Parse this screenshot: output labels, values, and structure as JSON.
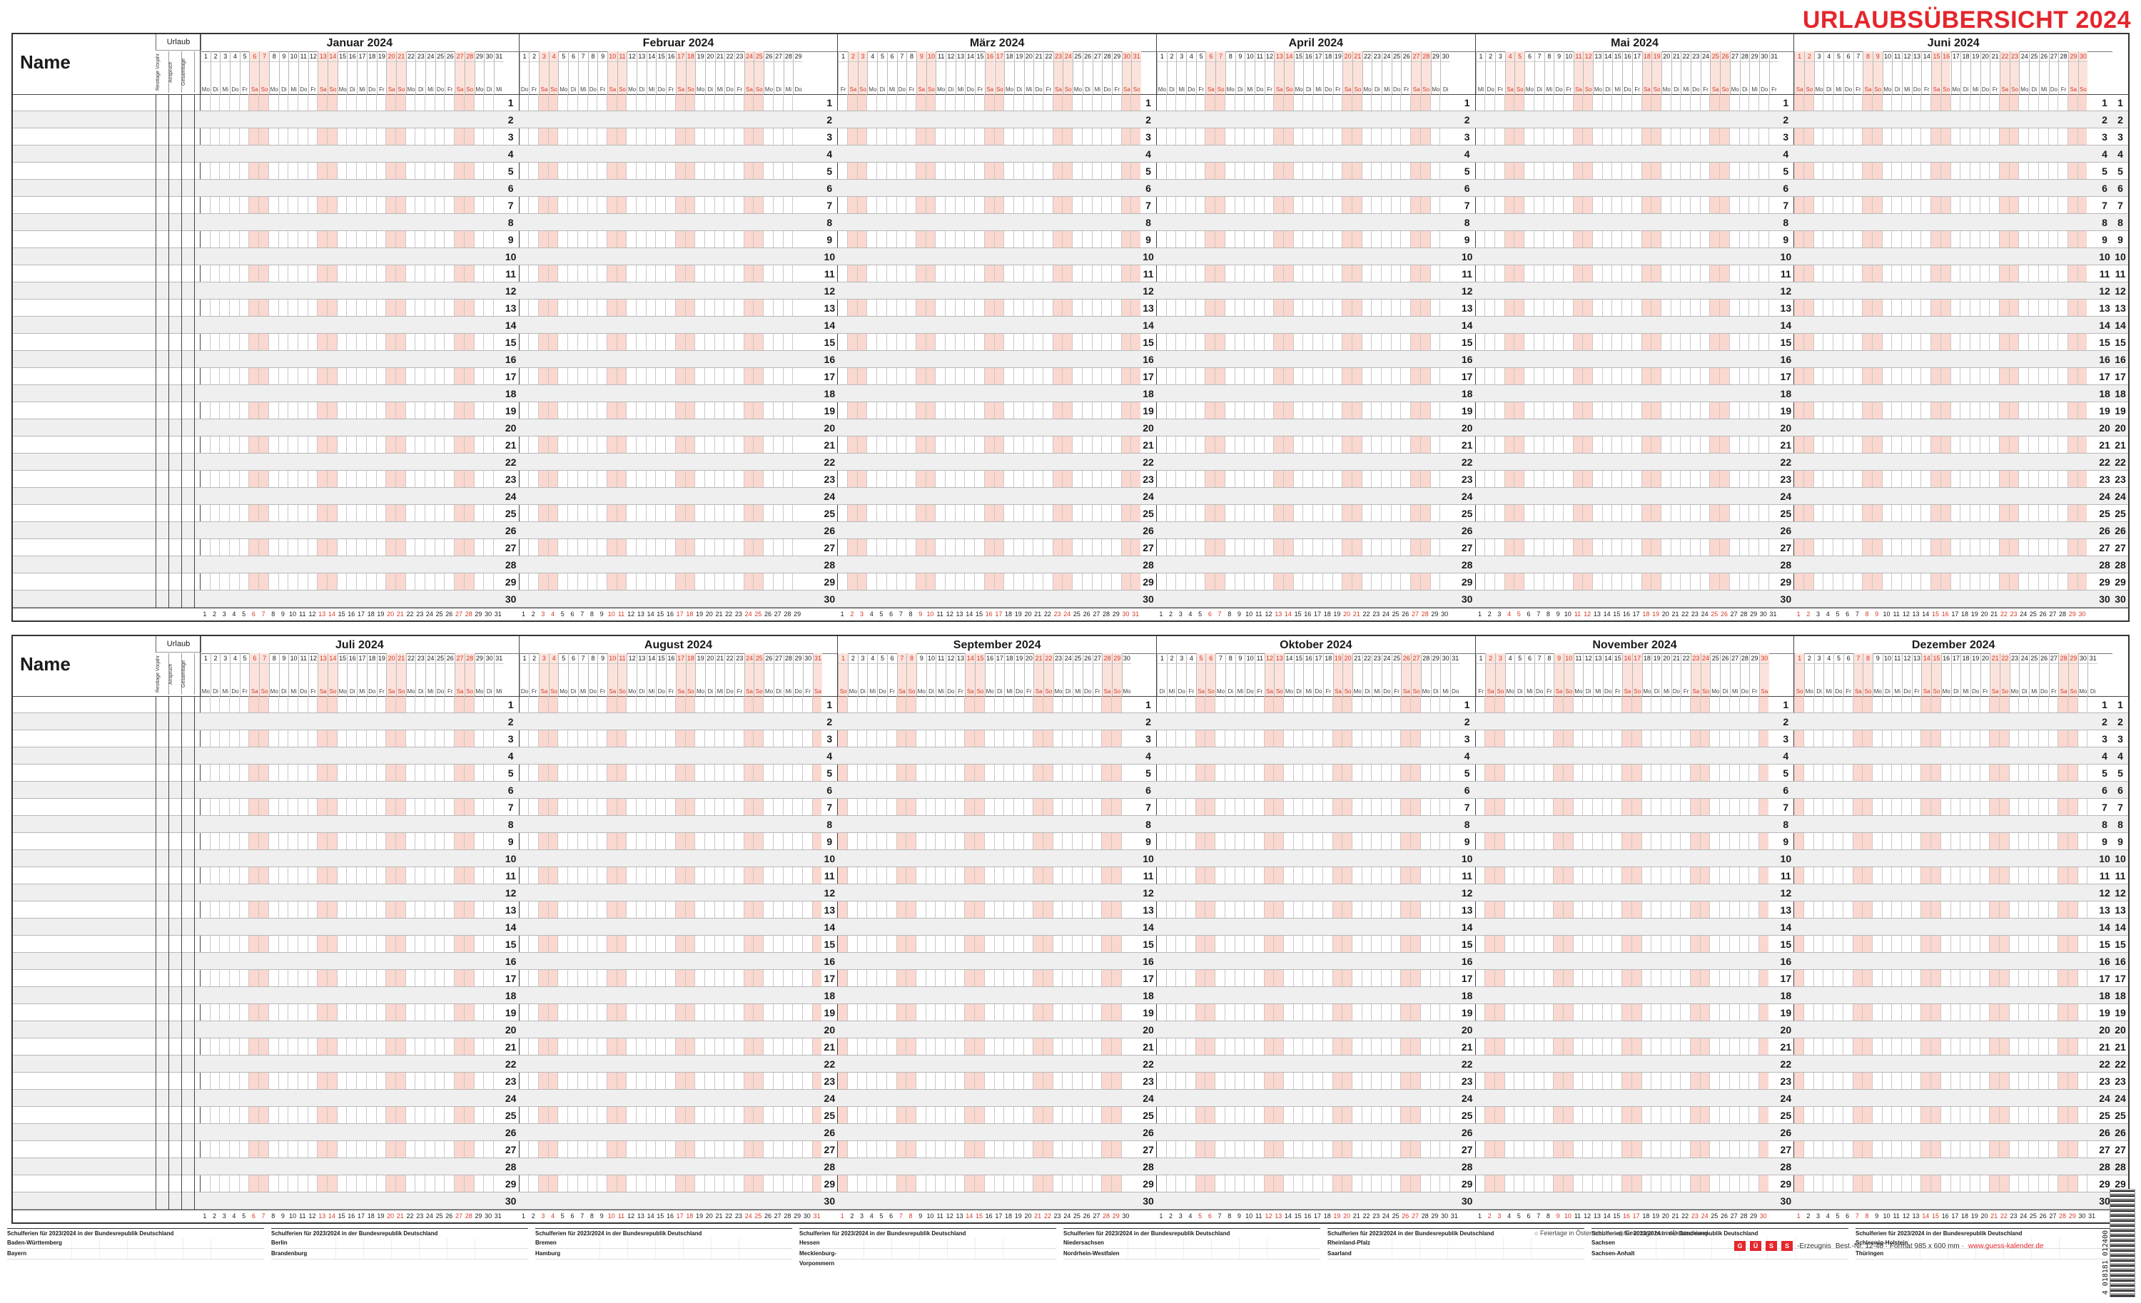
{
  "title": "URLAUBSÜBERSICHT 2024",
  "name_label": "Name",
  "urlaub_label": "Urlaub",
  "urlaub_columns": [
    "Resttage Vorjahr",
    "Anspruch",
    "Gesamttage"
  ],
  "zeile_label": "Zeile Nr.",
  "row_numbers": [
    1,
    2,
    3,
    4,
    5,
    6,
    7,
    8,
    9,
    10,
    11,
    12,
    13,
    14,
    15,
    16,
    17,
    18,
    19,
    20,
    21,
    22,
    23,
    24,
    25,
    26,
    27,
    28,
    29,
    30
  ],
  "weekday_abbr": [
    "Mo",
    "Di",
    "Mi",
    "Do",
    "Fr",
    "Sa",
    "So"
  ],
  "panels": [
    {
      "months": [
        {
          "name": "Januar 2024",
          "days": 31,
          "first_weekday": 0
        },
        {
          "name": "Februar 2024",
          "days": 29,
          "first_weekday": 3
        },
        {
          "name": "März 2024",
          "days": 31,
          "first_weekday": 4
        },
        {
          "name": "April 2024",
          "days": 30,
          "first_weekday": 0
        },
        {
          "name": "Mai 2024",
          "days": 31,
          "first_weekday": 2
        },
        {
          "name": "Juni 2024",
          "days": 30,
          "first_weekday": 5
        }
      ]
    },
    {
      "months": [
        {
          "name": "Juli 2024",
          "days": 31,
          "first_weekday": 0
        },
        {
          "name": "August 2024",
          "days": 31,
          "first_weekday": 3
        },
        {
          "name": "September 2024",
          "days": 30,
          "first_weekday": 6
        },
        {
          "name": "Oktober 2024",
          "days": 31,
          "first_weekday": 1
        },
        {
          "name": "November 2024",
          "days": 30,
          "first_weekday": 4
        },
        {
          "name": "Dezember 2024",
          "days": 31,
          "first_weekday": 6
        }
      ]
    }
  ],
  "ferien_title": "Schulferien für 2023/2024 in der Bundesrepublik Deutschland",
  "ferien_blocks": [
    {
      "rows": [
        "Baden-Württemberg",
        "Bayern"
      ]
    },
    {
      "rows": [
        "Berlin",
        "Brandenburg"
      ]
    },
    {
      "rows": [
        "Bremen",
        "Hamburg"
      ]
    },
    {
      "rows": [
        "Hessen",
        "Mecklenburg-Vorpommern"
      ]
    },
    {
      "rows": [
        "Niedersachsen",
        "Nordrhein-Westfalen"
      ]
    },
    {
      "rows": [
        "Rheinland-Pfalz",
        "Saarland"
      ]
    },
    {
      "rows": [
        "Sachsen",
        "Sachsen-Anhalt"
      ]
    },
    {
      "rows": [
        "Schleswig-Holstein",
        "Thüringen"
      ]
    }
  ],
  "legend": [
    "Feiertage in Österreich",
    "Feiertage nur in Deutschland"
  ],
  "imprint": {
    "brand_letters": [
      "G",
      "Ü",
      "S",
      "S"
    ],
    "erzeugnis": "-Erzeugnis",
    "order": "Best.-Nr. 12-40 · Format 985 x 600 mm ·",
    "url": "www.guess-kalender.de"
  },
  "barcode_number": "4 018181 012400"
}
